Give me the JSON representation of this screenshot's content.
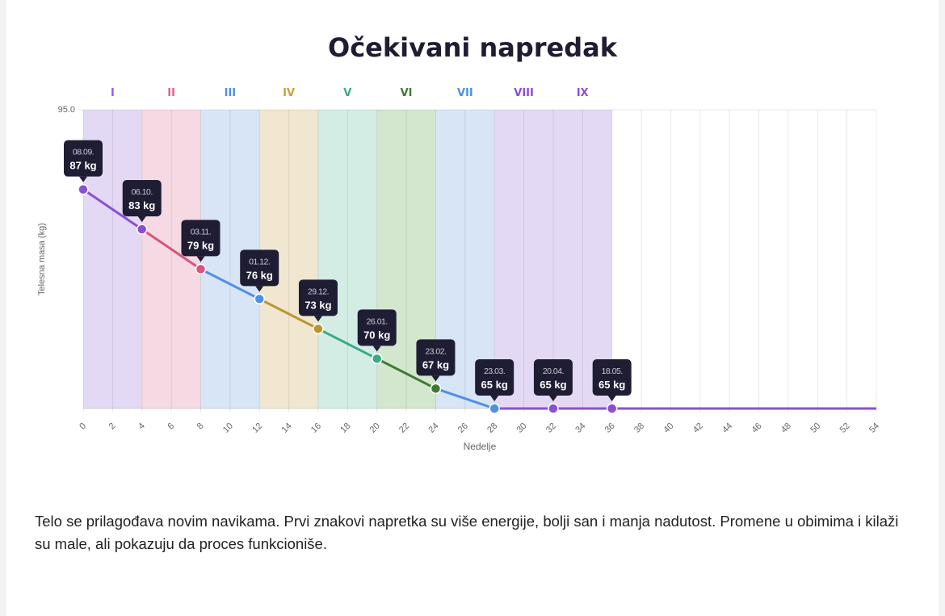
{
  "title": "Očekivani napredak",
  "description": "Telo se prilagođava novim navikama. Prvi znakovi napretka su više energije, bolji san i manja nadutost. Promene u obimima i kilaži su male, ali pokazuju da proces funkcioniše.",
  "chart_data": {
    "type": "line",
    "xlabel": "Nedelje",
    "ylabel": "Telesna masa (kg)",
    "xlim": [
      0,
      54
    ],
    "ylim": [
      65,
      95
    ],
    "x_ticks": [
      0,
      2,
      4,
      6,
      8,
      10,
      12,
      14,
      16,
      18,
      20,
      22,
      24,
      26,
      28,
      30,
      32,
      34,
      36,
      38,
      40,
      42,
      44,
      46,
      48,
      50,
      52,
      54
    ],
    "y_tick_labels": [
      "95.0"
    ],
    "grid": true,
    "phases": [
      {
        "label": "I",
        "start": 0,
        "end": 4,
        "color": "#8b5cf6",
        "band": "#e3d9f5",
        "line": "#8b4fd6"
      },
      {
        "label": "II",
        "start": 4,
        "end": 8,
        "color": "#e0608e",
        "band": "#f5d9e3",
        "line": "#d9547f"
      },
      {
        "label": "III",
        "start": 8,
        "end": 12,
        "color": "#4f8fe6",
        "band": "#d7e5f7",
        "line": "#4f8fe6"
      },
      {
        "label": "IV",
        "start": 12,
        "end": 16,
        "color": "#c9a03a",
        "band": "#f1e6cf",
        "line": "#b8962e"
      },
      {
        "label": "V",
        "start": 16,
        "end": 20,
        "color": "#3aaa85",
        "band": "#d3ede5",
        "line": "#3aaa85"
      },
      {
        "label": "VI",
        "start": 20,
        "end": 24,
        "color": "#3f7a35",
        "band": "#d2e7cd",
        "line": "#3f7a35"
      },
      {
        "label": "VII",
        "start": 24,
        "end": 28,
        "color": "#4f8fe6",
        "band": "#d7e5f7",
        "line": "#4f8fe6"
      },
      {
        "label": "VIII",
        "start": 28,
        "end": 32,
        "color": "#8b4fd6",
        "band": "#e3d9f5",
        "line": "#8b4fd6"
      },
      {
        "label": "IX",
        "start": 32,
        "end": 36,
        "color": "#8b4fd6",
        "band": "#e3d9f5",
        "line": "#8b4fd6"
      }
    ],
    "tail_color": "#8b4fd6",
    "points": [
      {
        "x": 0,
        "y": 87,
        "date": "08.09.",
        "label": "87 kg",
        "color": "#8b4fd6"
      },
      {
        "x": 4,
        "y": 83,
        "date": "06.10.",
        "label": "83 kg",
        "color": "#8b4fd6"
      },
      {
        "x": 8,
        "y": 79,
        "date": "03.11.",
        "label": "79 kg",
        "color": "#d9547f"
      },
      {
        "x": 12,
        "y": 76,
        "date": "01.12.",
        "label": "76 kg",
        "color": "#4f8fe6"
      },
      {
        "x": 16,
        "y": 73,
        "date": "29.12.",
        "label": "73 kg",
        "color": "#b8962e"
      },
      {
        "x": 20,
        "y": 70,
        "date": "26.01.",
        "label": "70 kg",
        "color": "#3aaa85"
      },
      {
        "x": 24,
        "y": 67,
        "date": "23.02.",
        "label": "67 kg",
        "color": "#3f7a35"
      },
      {
        "x": 28,
        "y": 65,
        "date": "23.03.",
        "label": "65 kg",
        "color": "#4f8fe6"
      },
      {
        "x": 32,
        "y": 65,
        "date": "20.04.",
        "label": "65 kg",
        "color": "#8b4fd6"
      },
      {
        "x": 36,
        "y": 65,
        "date": "18.05.",
        "label": "65 kg",
        "color": "#8b4fd6"
      }
    ],
    "line_end": {
      "x": 54,
      "y": 65
    }
  }
}
